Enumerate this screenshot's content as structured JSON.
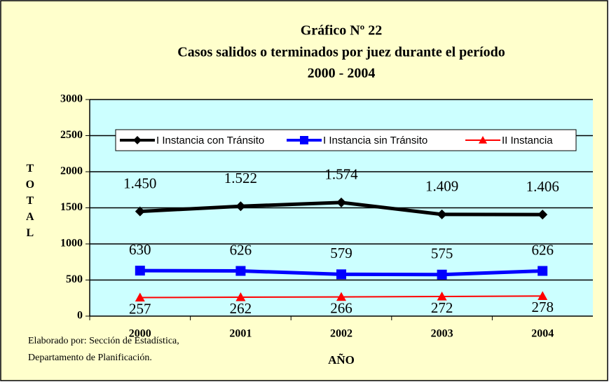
{
  "chart_data": {
    "type": "line",
    "title": [
      "Gráfico Nº 22",
      "Casos salidos o terminados por  juez  durante el período",
      "2000 - 2004"
    ],
    "x_label": "AÑO",
    "y_label": "TOTAL",
    "source": [
      "Elaborado por: Sección de Estadística,",
      "Departamento de Planificación."
    ],
    "categories": [
      "2000",
      "2001",
      "2002",
      "2003",
      "2004"
    ],
    "series": [
      {
        "name": "I Instancia con Tránsito",
        "color": "#000000",
        "marker": "diamond",
        "label_position": "above",
        "values": [
          1450,
          1522,
          1574,
          1409,
          1406
        ],
        "value_labels": [
          "1.450",
          "1.522",
          "1.574",
          "1.409",
          "1.406"
        ]
      },
      {
        "name": "I Instancia sin Tránsito",
        "color": "#0000FF",
        "marker": "square",
        "label_position": "above",
        "values": [
          630,
          626,
          579,
          575,
          626
        ]
      },
      {
        "name": "II Instancia",
        "color": "#FF0000",
        "marker": "triangle",
        "label_position": "below",
        "values": [
          257,
          262,
          266,
          272,
          278
        ]
      }
    ],
    "ylim": [
      0,
      3000
    ],
    "yticks": [
      0,
      500,
      1000,
      1500,
      2000,
      2500,
      3000
    ],
    "grid": true,
    "legend": "top"
  }
}
